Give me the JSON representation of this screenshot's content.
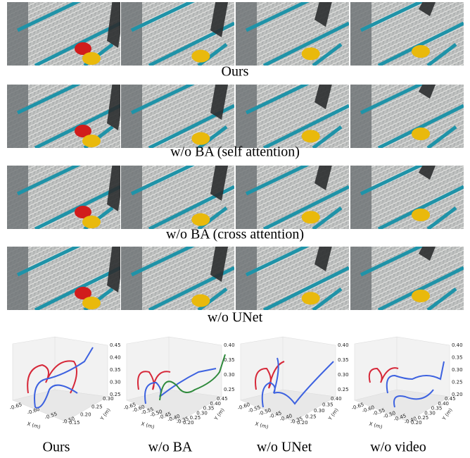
{
  "rows": [
    {
      "caption": "Ours"
    },
    {
      "caption": "w/o BA (self attention)"
    },
    {
      "caption": "w/o BA (cross attention)"
    },
    {
      "caption": "w/o UNet"
    }
  ],
  "plots": [
    {
      "label": "Ours",
      "x_axis_label": "X (m)",
      "y_axis_label": "Y (m)",
      "z_ticks": [
        "0.45",
        "0.40",
        "0.35",
        "0.30",
        "0.25"
      ],
      "x_ticks": [
        "-0.65",
        "-0.60",
        "-0.55",
        "-0.50"
      ],
      "y_ticks": [
        "0.15",
        "0.20",
        "0.25",
        "0.30"
      ]
    },
    {
      "label": "w/o BA",
      "x_axis_label": "X (m)",
      "y_axis_label": "Y (m)",
      "z_ticks": [
        "0.40",
        "0.35",
        "0.30",
        "0.25"
      ],
      "x_ticks": [
        "-0.65",
        "-0.60",
        "-0.55",
        "-0.50",
        "-0.45",
        "-0.40",
        "-0.35"
      ],
      "y_ticks": [
        "0.20",
        "0.25",
        "0.30",
        "0.35",
        "0.40",
        "0.45"
      ]
    },
    {
      "label": "w/o UNet",
      "x_axis_label": "X (m)",
      "y_axis_label": "Y (m)",
      "z_ticks": [
        "0.40",
        "0.35",
        "0.30",
        "0.25"
      ],
      "x_ticks": [
        "-0.60",
        "-0.55",
        "-0.50",
        "-0.45",
        "-0.40",
        "-0.35"
      ],
      "y_ticks": [
        "0.20",
        "0.25",
        "0.30",
        "0.35",
        "0.40"
      ]
    },
    {
      "label": "w/o video",
      "x_axis_label": "X (m)",
      "y_axis_label": "Y (m)",
      "z_ticks": [
        "0.40",
        "0.35",
        "0.30",
        "0.25",
        "0.20"
      ],
      "x_ticks": [
        "-0.65",
        "-0.60",
        "-0.55",
        "-0.50",
        "-0.45",
        "-0.40"
      ],
      "y_ticks": [
        "0.20",
        "0.25",
        "0.30",
        "0.35",
        "0.40",
        "0.45"
      ]
    }
  ]
}
